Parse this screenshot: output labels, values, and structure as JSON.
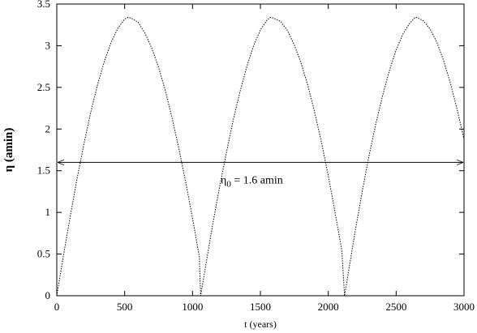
{
  "chart_data": {
    "type": "line",
    "title": "",
    "xlabel": "t (years)",
    "ylabel": "η (amin)",
    "xlim": [
      0,
      3000
    ],
    "ylim": [
      0,
      3.5
    ],
    "xticks": [
      0,
      500,
      1000,
      1500,
      2000,
      2500,
      3000
    ],
    "xtick_labels": [
      "0",
      "500",
      "1000",
      "1500",
      "2000",
      "2500",
      "3000"
    ],
    "yticks": [
      0,
      0.5,
      1,
      1.5,
      2,
      2.5,
      3,
      3.5
    ],
    "ytick_labels": [
      "0",
      "0.5",
      "1",
      "1.5",
      "2",
      "2.5",
      "3",
      "3.5"
    ],
    "grid": false,
    "legend": "none",
    "series": [
      {
        "line_style": "dotted",
        "color": "#000000",
        "x": [
          0,
          50,
          100,
          150,
          200,
          250,
          300,
          350,
          400,
          450,
          500,
          525,
          550,
          600,
          650,
          700,
          750,
          800,
          850,
          900,
          950,
          1000,
          1050,
          1060,
          1100,
          1150,
          1200,
          1250,
          1300,
          1350,
          1400,
          1450,
          1500,
          1550,
          1575,
          1600,
          1650,
          1700,
          1750,
          1800,
          1850,
          1900,
          1950,
          2000,
          2050,
          2100,
          2120,
          2150,
          2200,
          2250,
          2300,
          2350,
          2400,
          2450,
          2500,
          2550,
          2600,
          2640,
          2650,
          2700,
          2750,
          2800,
          2850,
          2900,
          2950,
          3000
        ],
        "y": [
          0,
          0.49,
          0.96,
          1.41,
          1.82,
          2.2,
          2.53,
          2.81,
          3.04,
          3.21,
          3.32,
          3.34,
          3.33,
          3.28,
          3.15,
          2.97,
          2.74,
          2.46,
          2.13,
          1.76,
          1.36,
          0.93,
          0.47,
          0,
          0.39,
          0.87,
          1.31,
          1.72,
          2.11,
          2.45,
          2.75,
          3.0,
          3.19,
          3.31,
          3.34,
          3.33,
          3.29,
          3.18,
          3.01,
          2.79,
          2.52,
          2.2,
          1.84,
          1.44,
          1.0,
          0.54,
          0,
          0.3,
          0.79,
          1.25,
          1.68,
          2.06,
          2.4,
          2.7,
          2.95,
          3.14,
          3.27,
          3.34,
          3.34,
          3.3,
          3.2,
          3.04,
          2.82,
          2.55,
          2.23,
          1.88
        ]
      }
    ],
    "annotations": [
      {
        "type": "double-arrow",
        "y": 1.6,
        "x_start": 0,
        "x_end": 3000,
        "label_main": "η",
        "label_sub": "0",
        "label_rest": " = 1.6 amin"
      }
    ]
  }
}
